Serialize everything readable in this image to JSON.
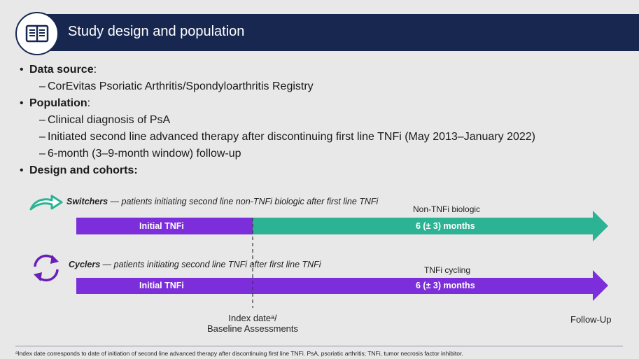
{
  "header": {
    "title": "Study design and population",
    "icon": "book-icon",
    "color": "#172750"
  },
  "bullets": {
    "data_source": {
      "label": "Data source",
      "suffix": ":",
      "items": [
        "CorEvitas Psoriatic Arthritis/Spondyloarthritis Registry"
      ]
    },
    "population": {
      "label": "Population",
      "suffix": ":",
      "items": [
        "Clinical diagnosis of PsA",
        "Initiated second line advanced therapy after discontinuing first line TNFi (May 2013–January 2022)",
        "6-month (3–9-month window) follow-up"
      ]
    },
    "design": {
      "label": "Design and cohorts:"
    }
  },
  "cohorts": {
    "switchers": {
      "name": "Switchers",
      "description": " — patients initiating second line non-TNFi biologic after first line TNFi",
      "icon": "switch-arrow-icon",
      "segment_label": "Non-TNFi biologic",
      "initial_label": "Initial TNFi",
      "followup_label": "6 (± 3) months",
      "initial_color": "#7b2ed9",
      "followup_color": "#2bb394"
    },
    "cyclers": {
      "name": "Cyclers",
      "description": " — patients initiating second line TNFi after first line TNFi",
      "icon": "cycle-arrows-icon",
      "segment_label": "TNFi cycling",
      "initial_label": "Initial TNFi",
      "followup_label": "6 (± 3) months",
      "initial_color": "#7b2ed9",
      "followup_color": "#7b2ed9"
    }
  },
  "axis": {
    "index_line1": "Index dateᵃ/",
    "index_line2": "Baseline Assessments",
    "followup": "Follow-Up"
  },
  "footnote": "ᵃIndex date corresponds to date of initiation of second line advanced therapy after discontinuing first line TNFi. PsA, psoriatic arthritis; TNFi, tumor necrosis factor inhibitor."
}
